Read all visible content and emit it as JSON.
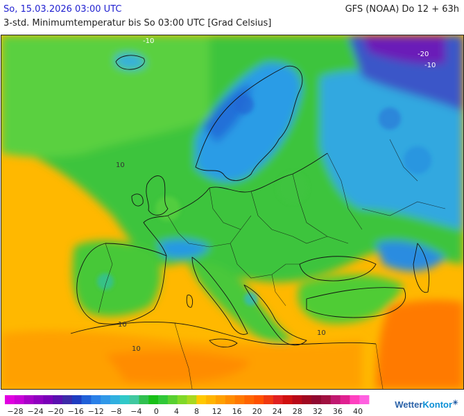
{
  "header": {
    "date_label": "So, 15.03.2026 03:00 UTC",
    "model_label": "GFS (NOAA) Do 12 + 63h",
    "description": "3-std. Minimumtemperatur bis So 03:00 UTC [Grad Celsius]"
  },
  "map": {
    "region": "Europe",
    "variable": "3-hour minimum temperature",
    "contour_labels": [
      "-10",
      "-20",
      "-10",
      "10",
      "10",
      "10",
      "10"
    ]
  },
  "legend": {
    "tick_labels": [
      "−28",
      "−24",
      "−20",
      "−16",
      "−12",
      "−8",
      "−4",
      "0",
      "4",
      "8",
      "12",
      "16",
      "20",
      "24",
      "28",
      "32",
      "36",
      "40"
    ],
    "colors": [
      "#e000e0",
      "#c800d8",
      "#a800c8",
      "#9000c0",
      "#7a00b8",
      "#5a10b0",
      "#3c2aa8",
      "#1e3cc0",
      "#2060d8",
      "#2a80e8",
      "#3098e8",
      "#30b0e0",
      "#30c8c8",
      "#40c8a0",
      "#30c050",
      "#18c018",
      "#30c838",
      "#58d030",
      "#80d828",
      "#a8d820",
      "#ffc800",
      "#ffb400",
      "#ffa000",
      "#ff8c00",
      "#ff7800",
      "#ff6400",
      "#ff5000",
      "#f03810",
      "#e02020",
      "#d01010",
      "#b80818",
      "#a00820",
      "#900830",
      "#a01040",
      "#c01870",
      "#e02090",
      "#ff40c0",
      "#ff60e0"
    ]
  },
  "brand": {
    "name_part1": "Wetter",
    "name_part2": "Kontor",
    "icon": "weather-icon"
  }
}
